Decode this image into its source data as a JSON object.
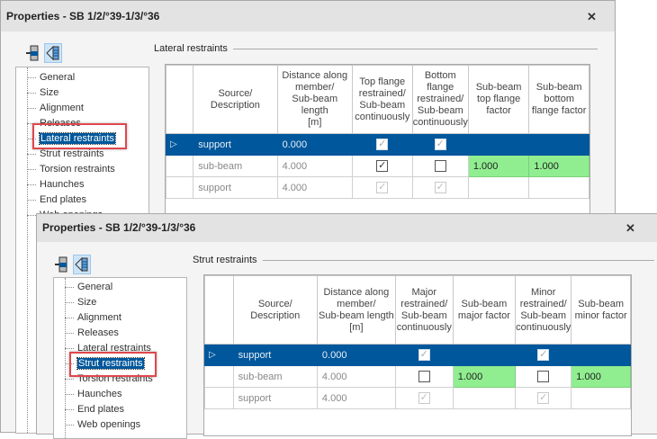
{
  "window1": {
    "title": "Properties - SB 1/2/°39-1/3/°36",
    "close_label": "✕",
    "section_title": "Lateral restraints",
    "tree": [
      "General",
      "Size",
      "Alignment",
      "Releases",
      "Lateral restraints",
      "Strut restraints",
      "Torsion restraints",
      "Haunches",
      "End plates",
      "Web openings"
    ],
    "selected_tree_item": "Lateral restraints",
    "table": {
      "headers": [
        "Source/\nDescription",
        "Distance along member/\nSub-beam length\n[m]",
        "Top flange restrained/\nSub-beam continuously",
        "Bottom flange restrained/\nSub-beam continuously",
        "Sub-beam top flange factor",
        "Sub-beam bottom flange factor"
      ],
      "rows": [
        {
          "source": "support",
          "distance": "0.000",
          "c1": true,
          "c2": true,
          "f1": "",
          "f2": ""
        },
        {
          "source": "sub-beam",
          "distance": "4.000",
          "c1": true,
          "c2": false,
          "f1": "1.000",
          "f2": "1.000"
        },
        {
          "source": "support",
          "distance": "4.000",
          "c1": true,
          "c2": true,
          "f1": "",
          "f2": ""
        }
      ]
    }
  },
  "window2": {
    "title": "Properties - SB 1/2/°39-1/3/°36",
    "close_label": "✕",
    "section_title": "Strut restraints",
    "tree": [
      "General",
      "Size",
      "Alignment",
      "Releases",
      "Lateral restraints",
      "Strut restraints",
      "Torsion restraints",
      "Haunches",
      "End plates",
      "Web openings"
    ],
    "selected_tree_item": "Strut restraints",
    "table": {
      "headers": [
        "Source/\nDescription",
        "Distance along member/\nSub-beam length\n[m]",
        "Major restrained/\nSub-beam continuously",
        "Sub-beam major factor",
        "Minor restrained/\nSub-beam continuously",
        "Sub-beam minor factor"
      ],
      "rows": [
        {
          "source": "support",
          "distance": "0.000",
          "c1": true,
          "f1": "",
          "c2": true,
          "f2": ""
        },
        {
          "source": "sub-beam",
          "distance": "4.000",
          "c1": false,
          "f1": "1.000",
          "c2": false,
          "f2": "1.000"
        },
        {
          "source": "support",
          "distance": "4.000",
          "c1": true,
          "f1": "",
          "c2": true,
          "f2": ""
        }
      ]
    }
  },
  "colors": {
    "selection": "#00579b",
    "highlight_cell": "#90ee90",
    "callout": "#e0474c"
  }
}
